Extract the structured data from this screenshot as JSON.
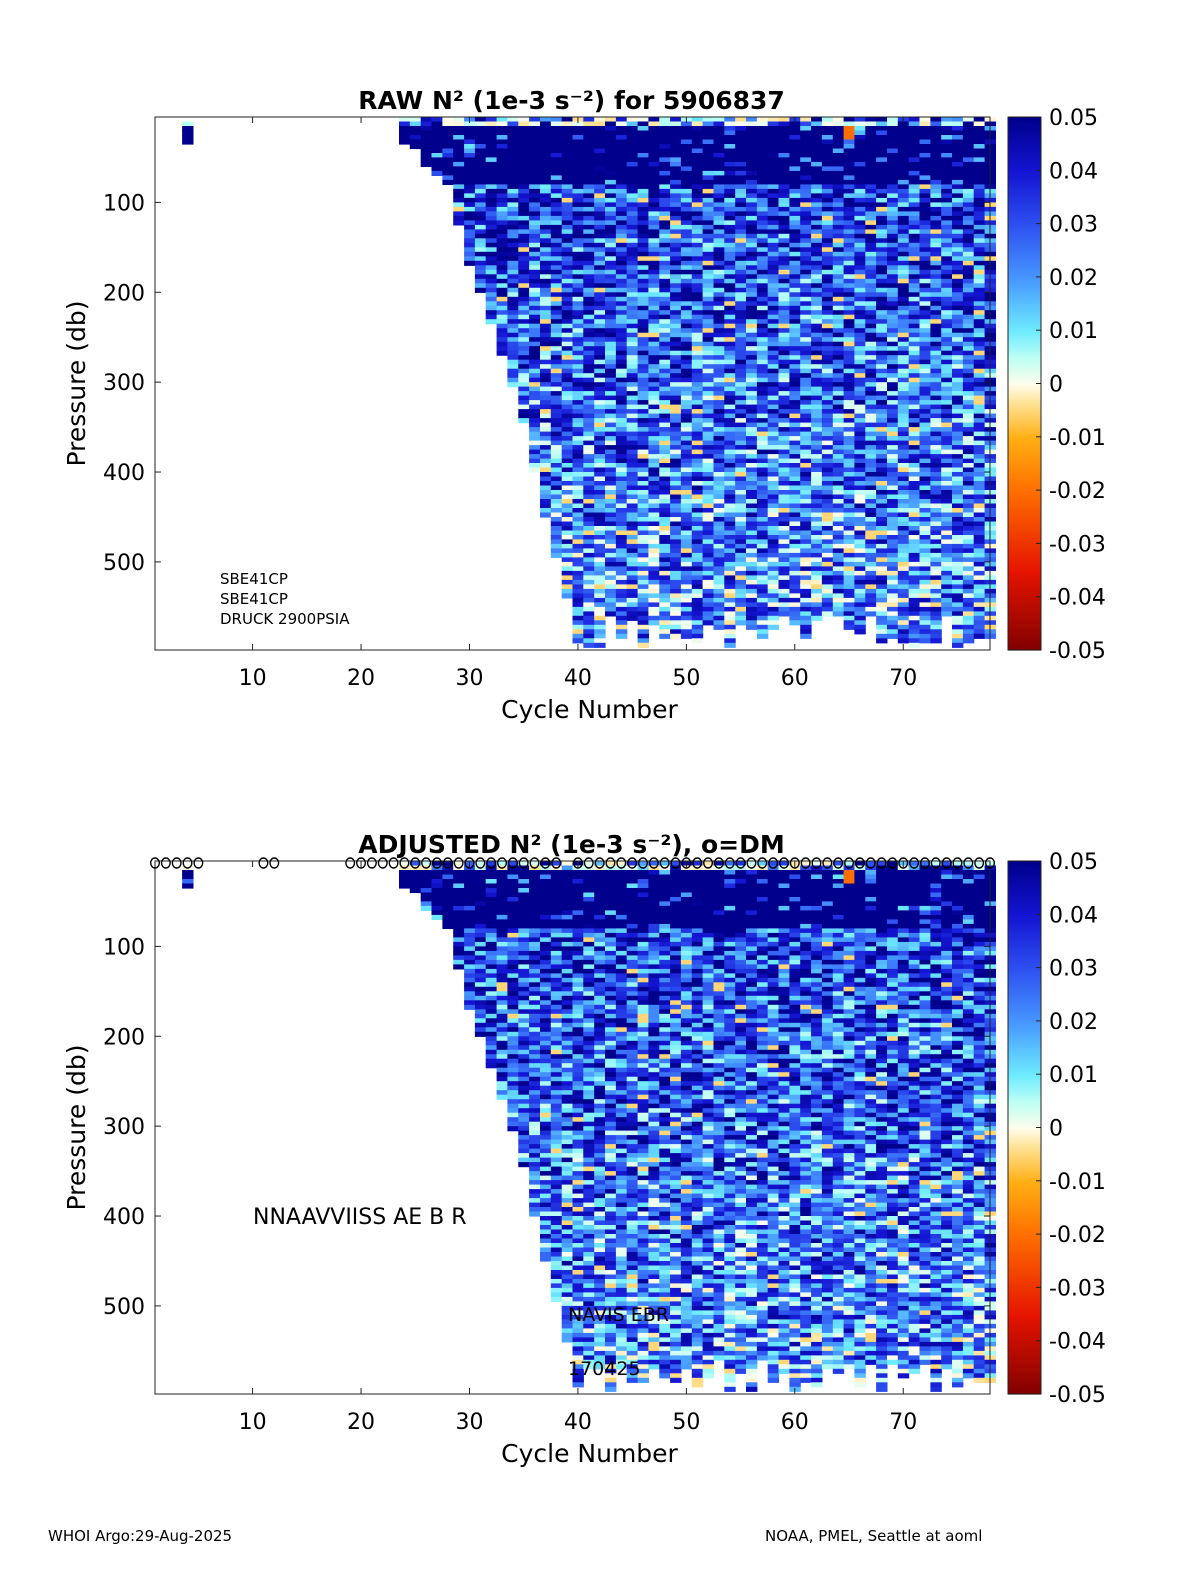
{
  "chart_data": [
    {
      "type": "heatmap",
      "title": "RAW N² (1e-3 s⁻²) for 5906837",
      "title_parts": {
        "pre": "RAW N",
        "sup1": "2",
        "mid": " (1e-3 s",
        "sup2": "-2",
        "post": ") for 5906837"
      },
      "xlabel": "Cycle Number",
      "ylabel": "Pressure (db)",
      "xlim": [
        1,
        78
      ],
      "ylim": [
        5,
        598
      ],
      "xticks": [
        10,
        20,
        30,
        40,
        50,
        60,
        70
      ],
      "yticks": [
        100,
        200,
        300,
        400,
        500
      ],
      "clim": [
        -0.05,
        0.05
      ],
      "cticks": [
        "0.05",
        "0.04",
        "0.03",
        "0.02",
        "0.01",
        "0",
        "-0.01",
        "-0.02",
        "-0.03",
        "-0.04",
        "-0.05"
      ],
      "annotations": [
        "SBE41CP",
        "SBE41CP",
        "DRUCK 2900PSIA"
      ],
      "profiles_max_pressure": {
        "4": 35,
        "24": 35,
        "25": 40,
        "26": 60,
        "27": 70,
        "28": 80,
        "29": 125,
        "30": 170,
        "31": 200,
        "32": 235,
        "33": 270,
        "34": 305,
        "35": 345,
        "36": 400,
        "37": 450,
        "38": 495,
        "39": 540,
        "40-78": 595
      },
      "seed": 7
    },
    {
      "type": "heatmap",
      "title": "ADJUSTED N² (1e-3 s⁻²), o=DM",
      "title_parts": {
        "pre": "ADJUSTED N",
        "sup1": "2",
        "mid": " (1e-3 s",
        "sup2": "-2",
        "post": "), o=DM"
      },
      "xlabel": "Cycle Number",
      "ylabel": "Pressure (db)",
      "xlim": [
        1,
        78
      ],
      "ylim": [
        5,
        598
      ],
      "xticks": [
        10,
        20,
        30,
        40,
        50,
        60,
        70
      ],
      "yticks": [
        100,
        200,
        300,
        400,
        500
      ],
      "clim": [
        -0.05,
        0.05
      ],
      "cticks": [
        "0.05",
        "0.04",
        "0.03",
        "0.02",
        "0.01",
        "0",
        "-0.01",
        "-0.02",
        "-0.03",
        "-0.04",
        "-0.05"
      ],
      "annotations": [
        "NNAAVVIISS  AE B R",
        "NAVIS EBR",
        "170425"
      ],
      "dm_cycles": [
        1,
        2,
        3,
        4,
        5,
        11,
        12,
        19,
        20,
        21,
        22,
        23,
        24,
        25,
        26,
        27,
        28,
        29,
        30,
        31,
        32,
        33,
        34,
        35,
        36,
        37,
        38,
        40,
        41,
        42,
        43,
        44,
        45,
        46,
        47,
        48,
        49,
        50,
        51,
        52,
        53,
        54,
        55,
        56,
        57,
        58,
        59,
        60,
        61,
        62,
        63,
        64,
        65,
        66,
        67,
        68,
        69,
        70,
        71,
        72,
        73,
        74,
        75,
        76,
        77,
        78
      ],
      "seed": 11
    }
  ],
  "footer": {
    "left": "WHOI Argo:29-Aug-2025",
    "right": "NOAA, PMEL, Seattle at aoml"
  }
}
